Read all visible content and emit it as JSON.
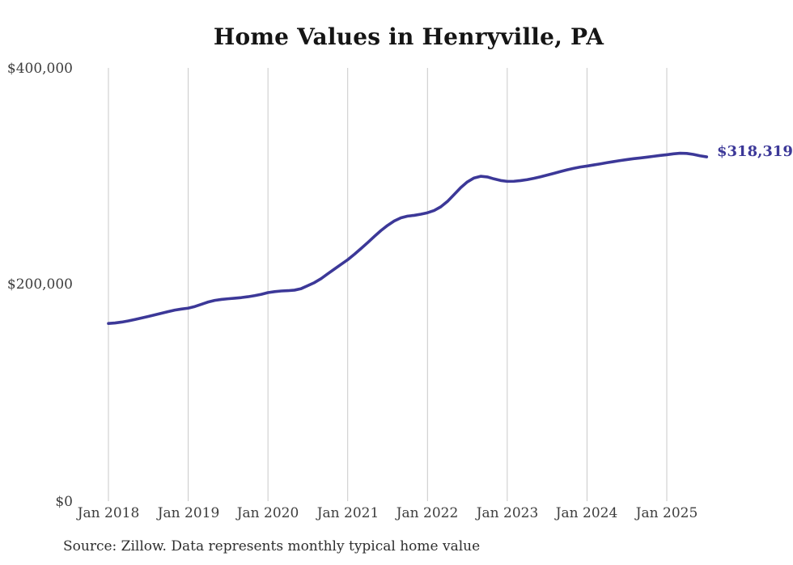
{
  "chart_data": {
    "type": "line",
    "title": "Home Values in Henryville, PA",
    "source_note": "Source: Zillow. Data represents monthly typical home value",
    "end_label": "$318,319",
    "end_value": 318319,
    "series_name": "Monthly typical home value",
    "legend": "none",
    "grid": "vertical-only",
    "line_color": "#3c3898",
    "grid_color": "#c9c9c9",
    "ylim": [
      0,
      400000
    ],
    "y_tick_labels": [
      "$0",
      "$200,000",
      "$400,000"
    ],
    "x_tick_labels": [
      "Jan 2018",
      "Jan 2019",
      "Jan 2020",
      "Jan 2021",
      "Jan 2022",
      "Jan 2023",
      "Jan 2024",
      "Jan 2025"
    ],
    "x": [
      "2018-01",
      "2018-02",
      "2018-03",
      "2018-04",
      "2018-05",
      "2018-06",
      "2018-07",
      "2018-08",
      "2018-09",
      "2018-10",
      "2018-11",
      "2018-12",
      "2019-01",
      "2019-02",
      "2019-03",
      "2019-04",
      "2019-05",
      "2019-06",
      "2019-07",
      "2019-08",
      "2019-09",
      "2019-10",
      "2019-11",
      "2019-12",
      "2020-01",
      "2020-02",
      "2020-03",
      "2020-04",
      "2020-05",
      "2020-06",
      "2020-07",
      "2020-08",
      "2020-09",
      "2020-10",
      "2020-11",
      "2020-12",
      "2021-01",
      "2021-02",
      "2021-03",
      "2021-04",
      "2021-05",
      "2021-06",
      "2021-07",
      "2021-08",
      "2021-09",
      "2021-10",
      "2021-11",
      "2021-12",
      "2022-01",
      "2022-02",
      "2022-03",
      "2022-04",
      "2022-05",
      "2022-06",
      "2022-07",
      "2022-08",
      "2022-09",
      "2022-10",
      "2022-11",
      "2022-12",
      "2023-01",
      "2023-02",
      "2023-03",
      "2023-04",
      "2023-05",
      "2023-06",
      "2023-07",
      "2023-08",
      "2023-09",
      "2023-10",
      "2023-11",
      "2023-12",
      "2024-01",
      "2024-02",
      "2024-03",
      "2024-04",
      "2024-05",
      "2024-06",
      "2024-07",
      "2024-08",
      "2024-09",
      "2024-10",
      "2024-11",
      "2024-12",
      "2025-01",
      "2025-02",
      "2025-03",
      "2025-04",
      "2025-05",
      "2025-06",
      "2025-07"
    ],
    "values": [
      163900,
      164400,
      165200,
      166300,
      167600,
      169000,
      170400,
      171900,
      173400,
      174900,
      176300,
      177300,
      178100,
      179600,
      181700,
      183800,
      185300,
      186200,
      186800,
      187300,
      187900,
      188700,
      189700,
      190900,
      192500,
      193400,
      194000,
      194300,
      194800,
      196200,
      199000,
      201800,
      205500,
      210000,
      214300,
      218700,
      223000,
      228000,
      233300,
      238800,
      244500,
      250000,
      254800,
      258900,
      261800,
      263400,
      264100,
      265200,
      266500,
      268600,
      272000,
      277000,
      283300,
      289800,
      295100,
      298700,
      300300,
      299700,
      297900,
      296400,
      295600,
      295700,
      296300,
      297200,
      298400,
      299800,
      301400,
      303000,
      304700,
      306300,
      307700,
      308900,
      309800,
      310800,
      311800,
      312900,
      313900,
      314900,
      315800,
      316600,
      317300,
      318000,
      318800,
      319600,
      320300,
      321100,
      321700,
      321500,
      320600,
      319300,
      318319
    ]
  }
}
